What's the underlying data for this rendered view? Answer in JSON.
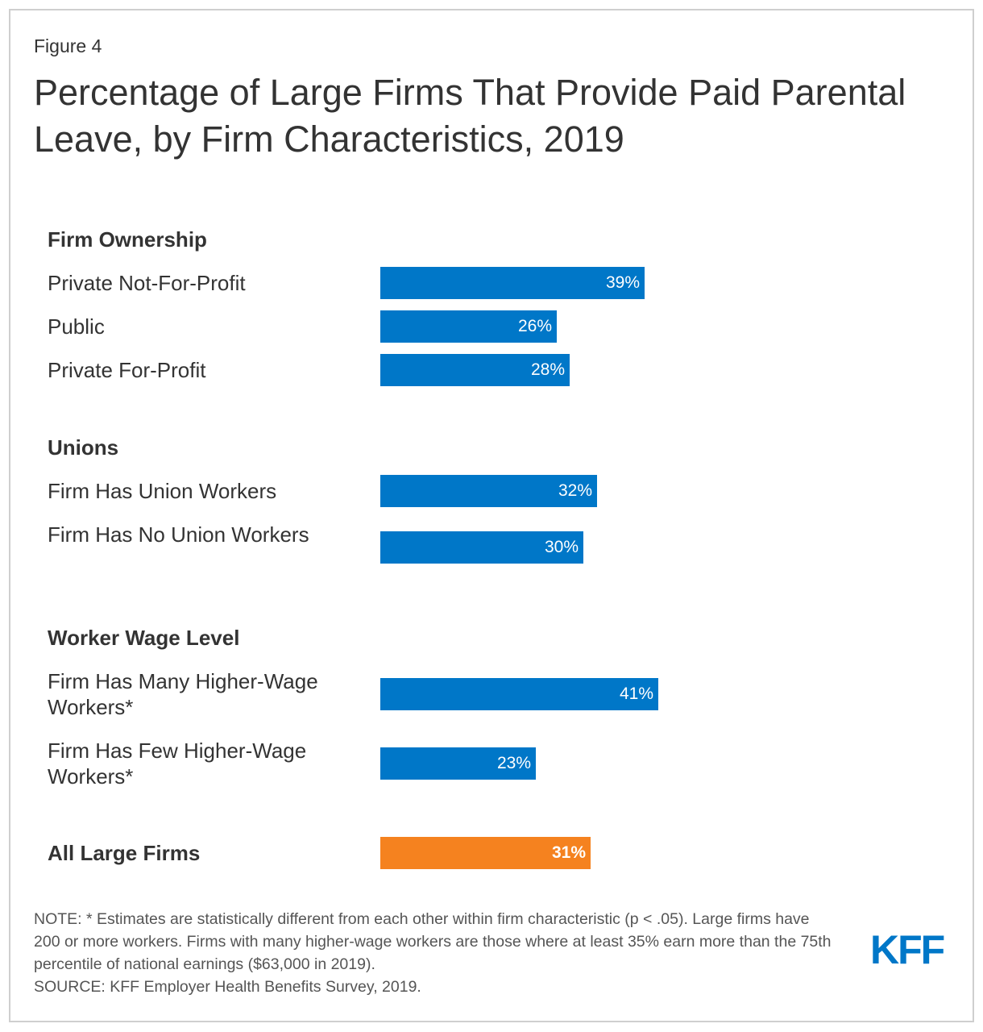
{
  "figure_label": "Figure 4",
  "title": "Percentage of Large Firms That Provide Paid Parental Leave, by Firm Characteristics, 2019",
  "colors": {
    "bar": "#0077c8",
    "total_bar": "#f5821f",
    "text": "#333333",
    "logo": "#0077c8"
  },
  "chart_data": {
    "type": "bar",
    "orientation": "horizontal",
    "title": "Percentage of Large Firms That Provide Paid Parental Leave, by Firm Characteristics, 2019",
    "unit": "%",
    "groups": [
      {
        "heading": "Firm Ownership",
        "categories": [
          {
            "label": "Private Not-For-Profit",
            "value": 39,
            "value_label": "39%"
          },
          {
            "label": "Public",
            "value": 26,
            "value_label": "26%"
          },
          {
            "label": "Private For-Profit",
            "value": 28,
            "value_label": "28%"
          }
        ]
      },
      {
        "heading": "Unions",
        "categories": [
          {
            "label": "Firm Has Union Workers",
            "value": 32,
            "value_label": "32%"
          },
          {
            "label": "Firm Has No Union Workers",
            "value": 30,
            "value_label": "30%"
          }
        ]
      },
      {
        "heading": "Worker Wage Level",
        "categories": [
          {
            "label": "Firm Has Many Higher-Wage Workers*",
            "value": 41,
            "value_label": "41%"
          },
          {
            "label": "Firm Has Few Higher-Wage Workers*",
            "value": 23,
            "value_label": "23%"
          }
        ]
      }
    ],
    "total": {
      "label": "All Large Firms",
      "value": 31,
      "value_label": "31%"
    }
  },
  "note": "NOTE: * Estimates are statistically different from each other within firm characteristic (p < .05). Large firms have 200 or more workers. Firms with many higher-wage workers are those where at least 35% earn more than the 75th percentile of national earnings ($63,000 in 2019).",
  "source": "SOURCE: KFF Employer Health Benefits Survey, 2019.",
  "logo_text": "KFF"
}
